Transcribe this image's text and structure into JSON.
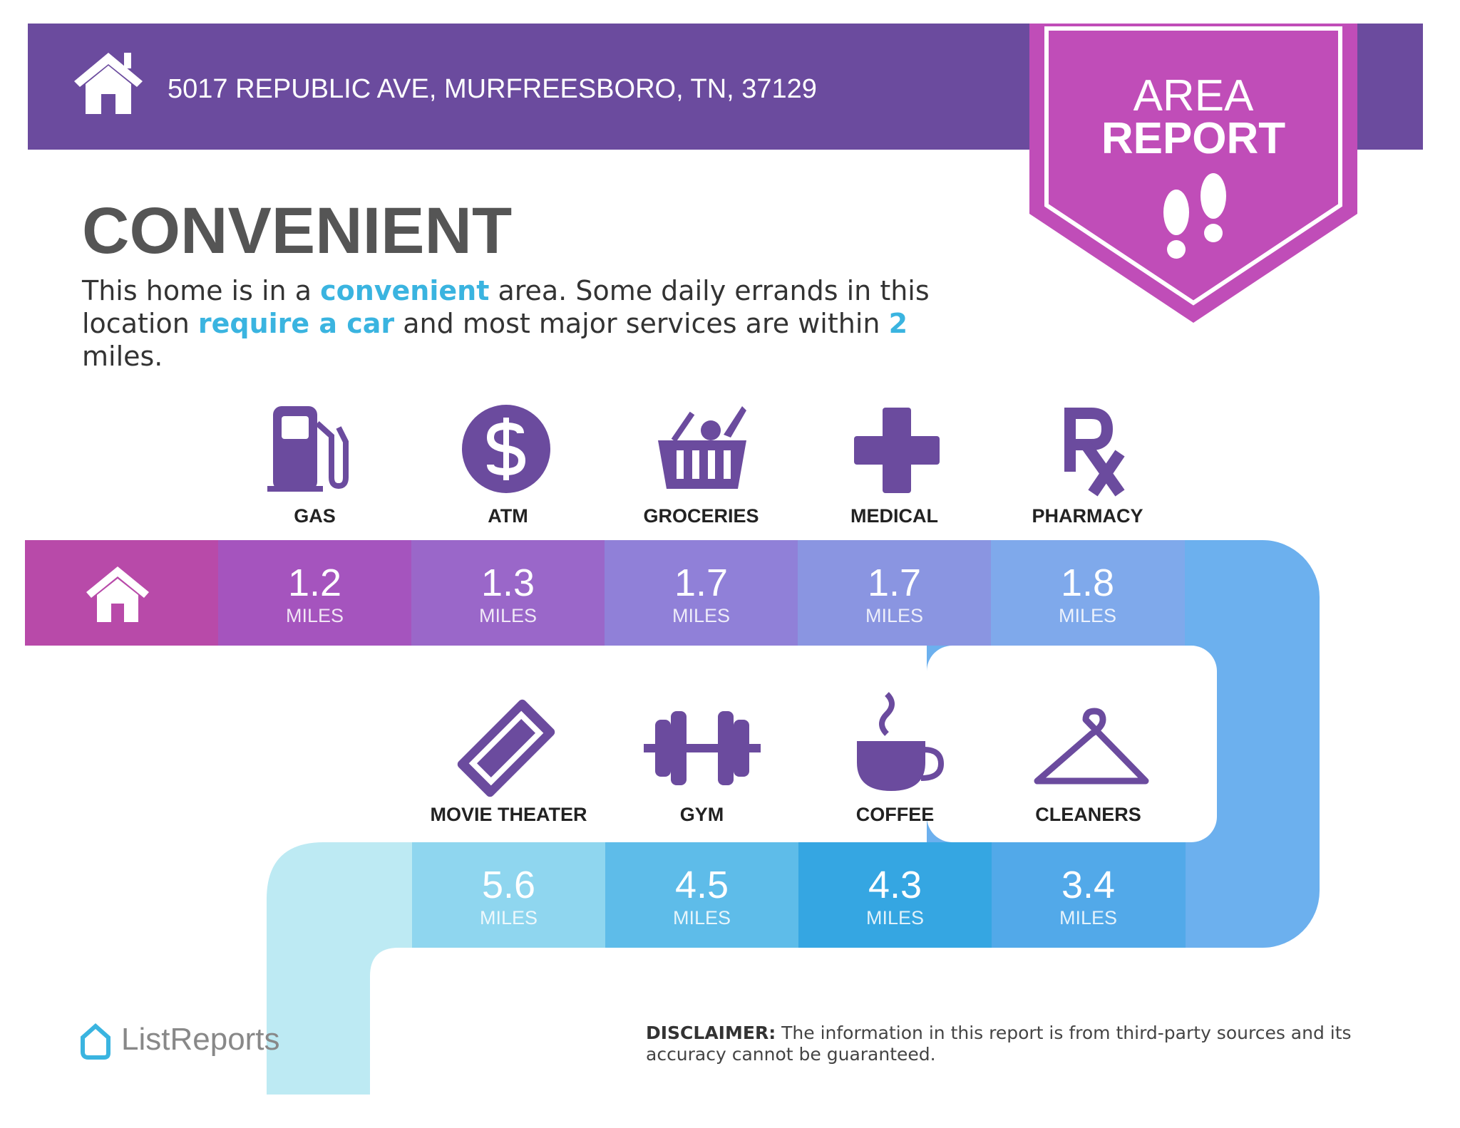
{
  "header": {
    "address": "5017 REPUBLIC AVE, MURFREESBORO, TN, 37129"
  },
  "badge": {
    "line_1": "AREA",
    "line_2": "REPORT"
  },
  "title": "CONVENIENT",
  "description": {
    "parts": [
      "This home is in a ",
      "convenient",
      " area. Some daily errands in this location ",
      "require a car",
      " and most major services are within ",
      "2",
      " miles."
    ]
  },
  "unit": "MILES",
  "row_1": [
    {
      "name": "GAS",
      "distance": 1.2
    },
    {
      "name": "ATM",
      "distance": 1.3
    },
    {
      "name": "GROCERIES",
      "distance": 1.7
    },
    {
      "name": "MEDICAL",
      "distance": 1.7
    },
    {
      "name": "PHARMACY",
      "distance": 1.8
    }
  ],
  "row_2": [
    {
      "name": "MOVIE THEATER",
      "distance": 5.6
    },
    {
      "name": "GYM",
      "distance": 4.5
    },
    {
      "name": "COFFEE",
      "distance": 4.3
    },
    {
      "name": "CLEANERS",
      "distance": 3.4
    }
  ],
  "footer": {
    "logo": "ListReports",
    "disclaimer_label": "DISCLAIMER:",
    "disclaimer": " The information in this report is from third-party sources and its accuracy cannot be guaranteed."
  }
}
